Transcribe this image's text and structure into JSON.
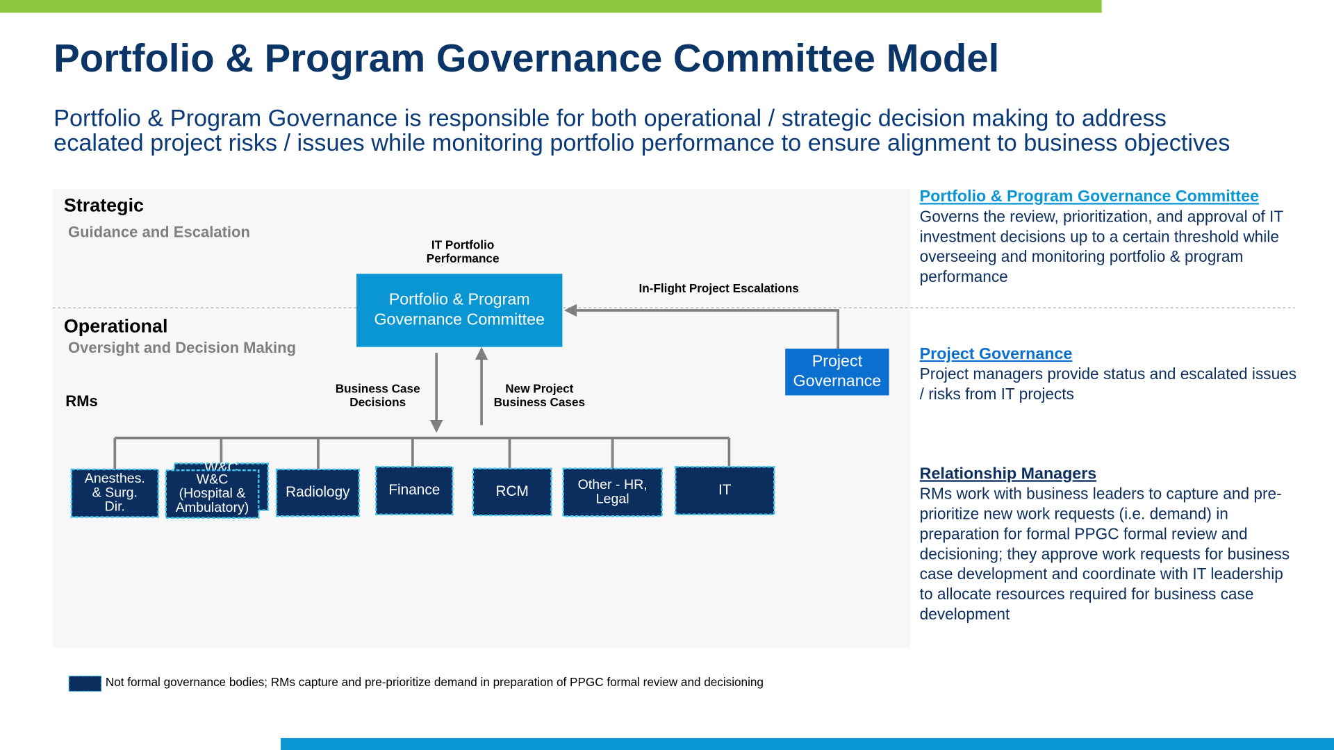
{
  "header": {
    "title": "Portfolio & Program Governance Committee Model",
    "subtitle_lines": [
      "Portfolio & Program Governance is responsible for both operational / strategic decision making to address",
      "ecalated project risks / issues while monitoring portfolio performance to ensure alignment to business objectives"
    ]
  },
  "diagram": {
    "levels": [
      {
        "label": "Strategic",
        "sublabel": "Guidance and Escalation"
      },
      {
        "label": "Operational",
        "sublabel": "Oversight and Decision Making"
      }
    ],
    "rms_label": "RMs",
    "nodes": [
      {
        "label_lines": [
          "Portfolio & Program",
          "Governance Committee"
        ]
      },
      {
        "label_lines": [
          "Project",
          "Governance"
        ]
      }
    ],
    "flows": [
      {
        "label_lines": [
          "IT Portfolio",
          "Performance"
        ]
      },
      {
        "label_lines": [
          "In-Flight Project Escalations"
        ]
      },
      {
        "label_lines": [
          "Business Case",
          "Decisions"
        ]
      },
      {
        "label_lines": [
          "New Project",
          "Business Cases"
        ]
      }
    ],
    "rm_nodes": [
      {
        "label_lines": [
          "Anesthes.",
          "& Surg.",
          "Dir."
        ]
      },
      {
        "label_lines": [
          "W&C"
        ]
      },
      {
        "label_lines": [
          "W&C",
          "(Hospital &",
          "Ambulatory)"
        ]
      },
      {
        "label_lines": [
          "Radiology"
        ]
      },
      {
        "label_lines": [
          "Finance"
        ]
      },
      {
        "label_lines": [
          "RCM"
        ]
      },
      {
        "label_lines": [
          "Other - HR,",
          "Legal"
        ]
      },
      {
        "label_lines": [
          "IT"
        ]
      }
    ]
  },
  "sidebar": [
    {
      "heading": "Portfolio & Program Governance Committee",
      "lines": [
        "Governs the review, prioritization, and approval of IT",
        "investment decisions up to a certain threshold while",
        "overseeing and monitoring portfolio & program",
        "performance"
      ]
    },
    {
      "heading": "Project Governance",
      "lines": [
        "Project managers provide status and escalated issues",
        "/ risks from IT projects"
      ]
    },
    {
      "heading": "Relationship Managers",
      "lines": [
        "RMs work with business leaders to capture and pre-",
        "prioritize new work requests (i.e. demand) in",
        "preparation for formal PPGC formal review and",
        "decisioning; they approve work requests for business",
        "case development and coordinate with IT leadership",
        "to allocate resources required for business case",
        "development"
      ]
    }
  ],
  "legend": {
    "text": "Not formal governance bodies; RMs capture and pre-prioritize demand in preparation of PPGC formal review and decisioning"
  }
}
